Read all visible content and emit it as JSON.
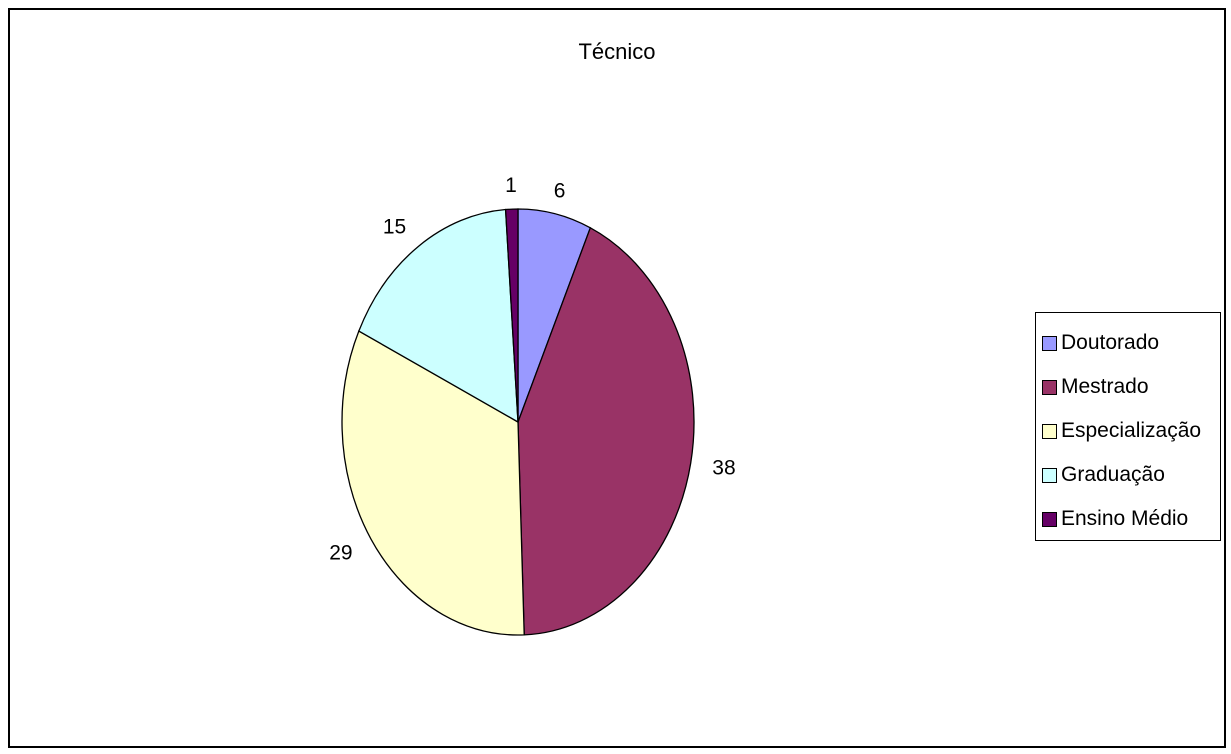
{
  "chart_data": {
    "type": "pie",
    "title": "Técnico",
    "categories": [
      "Doutorado",
      "Mestrado",
      "Especialização",
      "Graduação",
      "Ensino Médio"
    ],
    "values": [
      6,
      38,
      29,
      15,
      1
    ],
    "colors": [
      "#9999ff",
      "#993366",
      "#ffffcc",
      "#ccffff",
      "#660066"
    ],
    "start_angle": "12 o'clock",
    "direction": "clockwise",
    "legend_position": "right"
  }
}
